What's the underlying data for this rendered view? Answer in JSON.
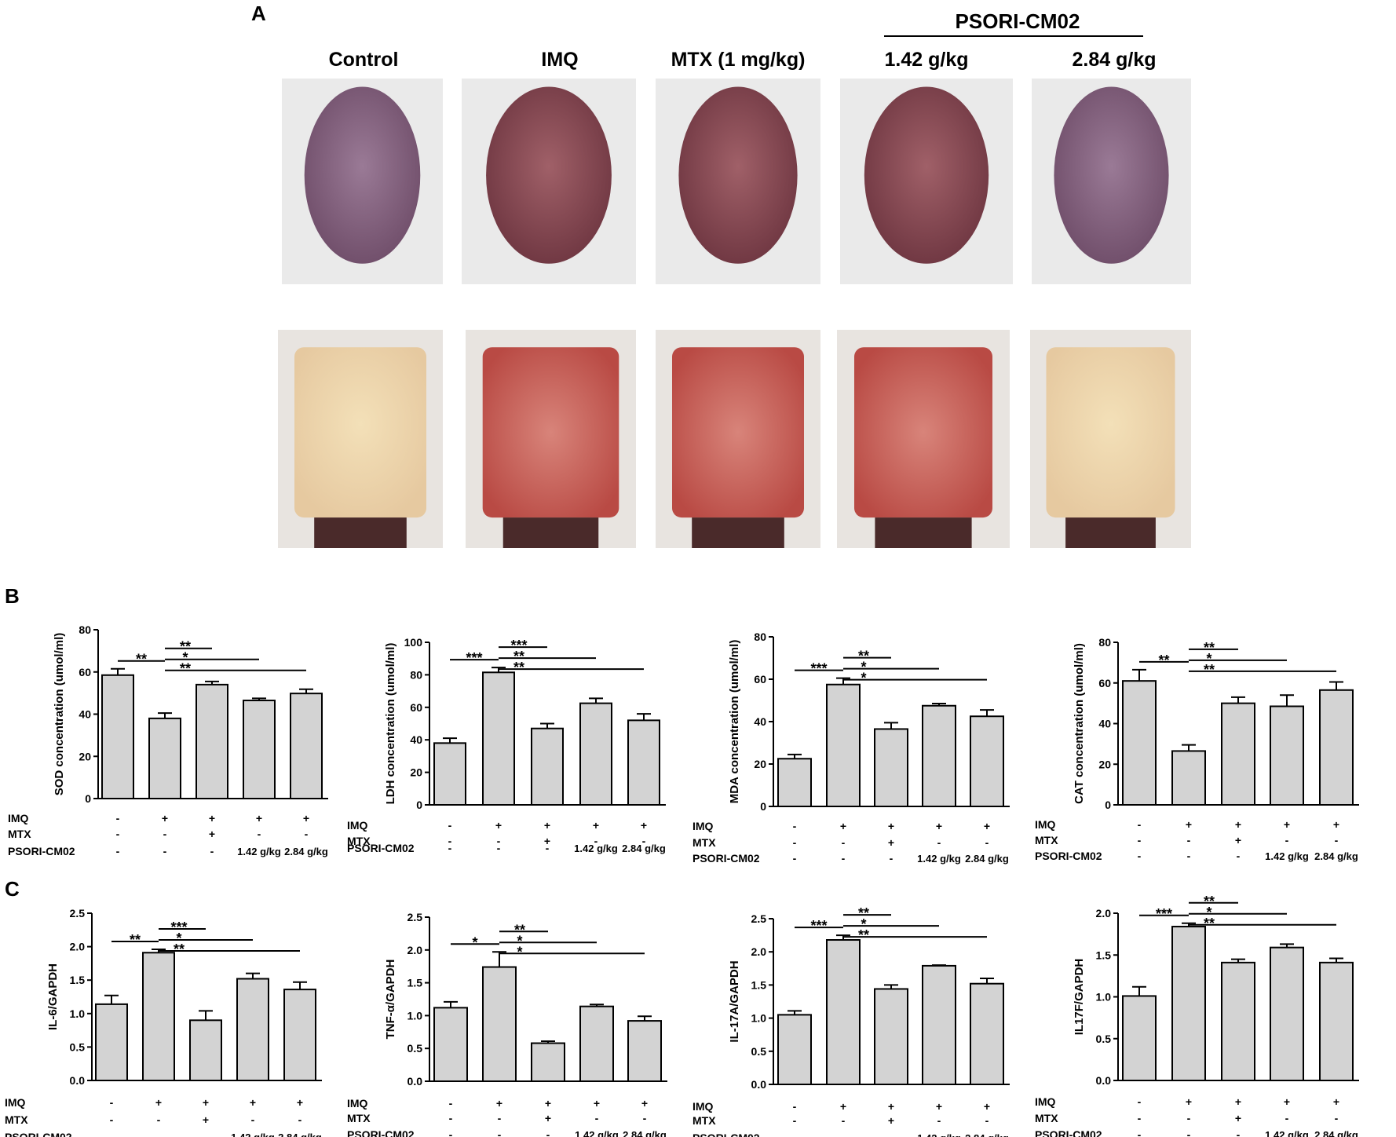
{
  "panel_A": {
    "label": "A",
    "group_header": "PSORI-CM02",
    "photo_columns": [
      "Control",
      "IMQ",
      "MTX (1 mg/kg)",
      "1.42 g/kg",
      "2.84 g/kg"
    ],
    "photos_top": [
      "mouse-back-control",
      "mouse-back-imq",
      "mouse-back-mtx",
      "mouse-back-1.42",
      "mouse-back-2.84"
    ],
    "photos_bottom": [
      "skin-inner-control",
      "skin-inner-imq",
      "skin-inner-mtx",
      "skin-inner-1.42",
      "skin-inner-2.84"
    ]
  },
  "panel_B": {
    "label": "B"
  },
  "panel_C": {
    "label": "C"
  },
  "treatment_table": {
    "row_labels": [
      "IMQ",
      "MTX",
      "PSORI-CM02"
    ],
    "imq": [
      "-",
      "+",
      "+",
      "+",
      "+"
    ],
    "mtx": [
      "-",
      "-",
      "+",
      "-",
      "-"
    ],
    "psori": [
      "-",
      "-",
      "-",
      "1.42 g/kg",
      "2.84 g/kg"
    ]
  },
  "chart_data": [
    {
      "type": "bar",
      "ylabel": "SOD concentration (umol/ml)",
      "ylim": [
        0,
        80
      ],
      "ticks": [
        "0",
        "20",
        "40",
        "60",
        "80"
      ],
      "values": [
        58.5,
        38,
        54,
        46.5,
        49.8
      ],
      "errors": [
        3,
        2.5,
        1.5,
        1,
        2
      ],
      "significance": [
        {
          "from": 0,
          "to": 1,
          "label": "**"
        },
        {
          "from": 1,
          "to": 2,
          "label": "**"
        },
        {
          "from": 1,
          "to": 3,
          "label": "*"
        },
        {
          "from": 1,
          "to": 4,
          "label": "**"
        }
      ]
    },
    {
      "type": "bar",
      "ylabel": "LDH concentration (umol/ml)",
      "ylim": [
        0,
        100
      ],
      "ticks": [
        "0",
        "20",
        "40",
        "60",
        "80",
        "100"
      ],
      "values": [
        38,
        81.5,
        47,
        62.5,
        52
      ],
      "errors": [
        3,
        3,
        3,
        3,
        4
      ],
      "significance": [
        {
          "from": 0,
          "to": 1,
          "label": "***"
        },
        {
          "from": 1,
          "to": 2,
          "label": "***"
        },
        {
          "from": 1,
          "to": 3,
          "label": "**"
        },
        {
          "from": 1,
          "to": 4,
          "label": "**"
        }
      ]
    },
    {
      "type": "bar",
      "ylabel": "MDA concentration (umol/ml)",
      "ylim": [
        0,
        80
      ],
      "ticks": [
        "0",
        "20",
        "40",
        "60",
        "80"
      ],
      "values": [
        22.5,
        57.5,
        36.5,
        47.5,
        42.5
      ],
      "errors": [
        2,
        3,
        3,
        1,
        3
      ],
      "significance": [
        {
          "from": 0,
          "to": 1,
          "label": "***"
        },
        {
          "from": 1,
          "to": 2,
          "label": "**"
        },
        {
          "from": 1,
          "to": 3,
          "label": "*"
        },
        {
          "from": 1,
          "to": 4,
          "label": "*"
        }
      ]
    },
    {
      "type": "bar",
      "ylabel": "CAT concentration (umol/ml)",
      "ylim": [
        0,
        80
      ],
      "ticks": [
        "0",
        "20",
        "40",
        "60",
        "80"
      ],
      "values": [
        61,
        26.5,
        50,
        48.5,
        56.5
      ],
      "errors": [
        5.5,
        3,
        3,
        5.5,
        4
      ],
      "significance": [
        {
          "from": 0,
          "to": 1,
          "label": "**"
        },
        {
          "from": 1,
          "to": 2,
          "label": "**"
        },
        {
          "from": 1,
          "to": 3,
          "label": "*"
        },
        {
          "from": 1,
          "to": 4,
          "label": "**"
        }
      ]
    },
    {
      "type": "bar",
      "ylabel": "IL-6/GAPDH",
      "ylim": [
        0,
        2.5
      ],
      "ticks": [
        "0.0",
        "0.5",
        "1.0",
        "1.5",
        "2.0",
        "2.5"
      ],
      "values": [
        1.14,
        1.91,
        0.9,
        1.52,
        1.36
      ],
      "errors": [
        0.13,
        0.05,
        0.14,
        0.08,
        0.11
      ],
      "significance": [
        {
          "from": 0,
          "to": 1,
          "label": "**"
        },
        {
          "from": 1,
          "to": 2,
          "label": "***"
        },
        {
          "from": 1,
          "to": 3,
          "label": "*"
        },
        {
          "from": 1,
          "to": 4,
          "label": "**"
        }
      ]
    },
    {
      "type": "bar",
      "ylabel": "TNF-α/GAPDH",
      "ylim": [
        0,
        2.5
      ],
      "ticks": [
        "0.0",
        "0.5",
        "1.0",
        "1.5",
        "2.0",
        "2.5"
      ],
      "values": [
        1.12,
        1.74,
        0.58,
        1.14,
        0.92
      ],
      "errors": [
        0.09,
        0.23,
        0.03,
        0.03,
        0.07
      ],
      "significance": [
        {
          "from": 0,
          "to": 1,
          "label": "*"
        },
        {
          "from": 1,
          "to": 2,
          "label": "**"
        },
        {
          "from": 1,
          "to": 3,
          "label": "*"
        },
        {
          "from": 1,
          "to": 4,
          "label": "*"
        }
      ]
    },
    {
      "type": "bar",
      "ylabel": "IL-17A/GAPDH",
      "ylim": [
        0,
        2.5
      ],
      "ticks": [
        "0.0",
        "0.5",
        "1.0",
        "1.5",
        "2.0",
        "2.5"
      ],
      "values": [
        1.05,
        2.18,
        1.44,
        1.79,
        1.52
      ],
      "errors": [
        0.06,
        0.07,
        0.06,
        0.01,
        0.08
      ],
      "significance": [
        {
          "from": 0,
          "to": 1,
          "label": "***"
        },
        {
          "from": 1,
          "to": 2,
          "label": "**"
        },
        {
          "from": 1,
          "to": 3,
          "label": "*"
        },
        {
          "from": 1,
          "to": 4,
          "label": "**"
        }
      ]
    },
    {
      "type": "bar",
      "ylabel": "IL17F/GAPDH",
      "ylim": [
        0,
        2.0
      ],
      "ticks": [
        "0.0",
        "0.5",
        "1.0",
        "1.5",
        "2.0"
      ],
      "values": [
        1.01,
        1.84,
        1.41,
        1.59,
        1.41
      ],
      "errors": [
        0.11,
        0.04,
        0.04,
        0.04,
        0.05
      ],
      "significance": [
        {
          "from": 0,
          "to": 1,
          "label": "***"
        },
        {
          "from": 1,
          "to": 2,
          "label": "**"
        },
        {
          "from": 1,
          "to": 3,
          "label": "*"
        },
        {
          "from": 1,
          "to": 4,
          "label": "**"
        }
      ]
    }
  ]
}
